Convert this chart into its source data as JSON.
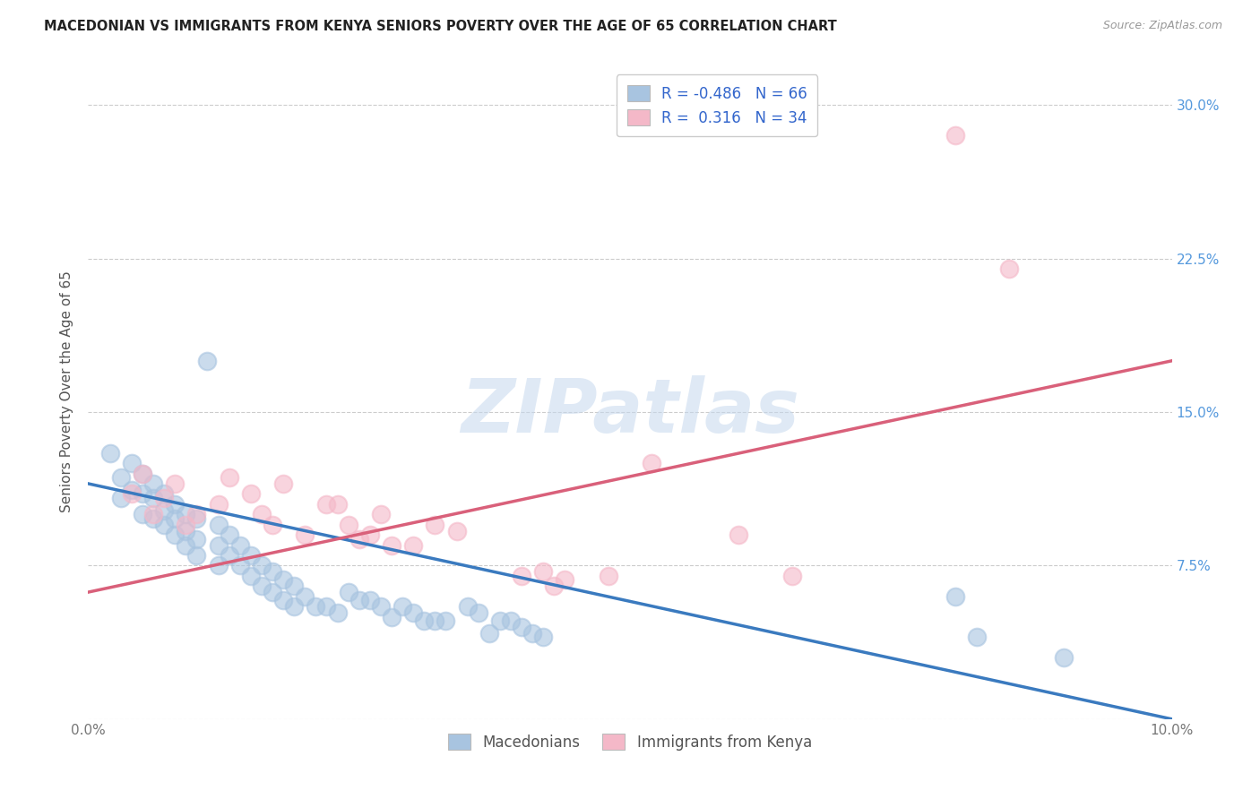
{
  "title": "MACEDONIAN VS IMMIGRANTS FROM KENYA SENIORS POVERTY OVER THE AGE OF 65 CORRELATION CHART",
  "source": "Source: ZipAtlas.com",
  "ylabel": "Seniors Poverty Over the Age of 65",
  "x_min": 0.0,
  "x_max": 0.1,
  "y_min": 0.0,
  "y_max": 0.32,
  "x_ticks": [
    0.0,
    0.02,
    0.04,
    0.06,
    0.08,
    0.1
  ],
  "y_ticks": [
    0.0,
    0.075,
    0.15,
    0.225,
    0.3
  ],
  "macedonian_R": -0.486,
  "macedonian_N": 66,
  "kenya_R": 0.316,
  "kenya_N": 34,
  "macedonian_color": "#a8c4e0",
  "kenya_color": "#f4b8c8",
  "macedonian_line_color": "#3a7abf",
  "kenya_line_color": "#d9607a",
  "watermark": "ZIPatlas",
  "macedonian_points": [
    [
      0.002,
      0.13
    ],
    [
      0.003,
      0.118
    ],
    [
      0.003,
      0.108
    ],
    [
      0.004,
      0.125
    ],
    [
      0.004,
      0.112
    ],
    [
      0.005,
      0.12
    ],
    [
      0.005,
      0.11
    ],
    [
      0.005,
      0.1
    ],
    [
      0.006,
      0.115
    ],
    [
      0.006,
      0.108
    ],
    [
      0.006,
      0.098
    ],
    [
      0.007,
      0.11
    ],
    [
      0.007,
      0.102
    ],
    [
      0.007,
      0.095
    ],
    [
      0.008,
      0.105
    ],
    [
      0.008,
      0.098
    ],
    [
      0.008,
      0.09
    ],
    [
      0.009,
      0.1
    ],
    [
      0.009,
      0.092
    ],
    [
      0.009,
      0.085
    ],
    [
      0.01,
      0.098
    ],
    [
      0.01,
      0.088
    ],
    [
      0.01,
      0.08
    ],
    [
      0.011,
      0.175
    ],
    [
      0.012,
      0.095
    ],
    [
      0.012,
      0.085
    ],
    [
      0.012,
      0.075
    ],
    [
      0.013,
      0.09
    ],
    [
      0.013,
      0.08
    ],
    [
      0.014,
      0.085
    ],
    [
      0.014,
      0.075
    ],
    [
      0.015,
      0.08
    ],
    [
      0.015,
      0.07
    ],
    [
      0.016,
      0.075
    ],
    [
      0.016,
      0.065
    ],
    [
      0.017,
      0.072
    ],
    [
      0.017,
      0.062
    ],
    [
      0.018,
      0.068
    ],
    [
      0.018,
      0.058
    ],
    [
      0.019,
      0.065
    ],
    [
      0.019,
      0.055
    ],
    [
      0.02,
      0.06
    ],
    [
      0.021,
      0.055
    ],
    [
      0.022,
      0.055
    ],
    [
      0.023,
      0.052
    ],
    [
      0.024,
      0.062
    ],
    [
      0.025,
      0.058
    ],
    [
      0.026,
      0.058
    ],
    [
      0.027,
      0.055
    ],
    [
      0.028,
      0.05
    ],
    [
      0.029,
      0.055
    ],
    [
      0.03,
      0.052
    ],
    [
      0.031,
      0.048
    ],
    [
      0.032,
      0.048
    ],
    [
      0.033,
      0.048
    ],
    [
      0.035,
      0.055
    ],
    [
      0.036,
      0.052
    ],
    [
      0.037,
      0.042
    ],
    [
      0.038,
      0.048
    ],
    [
      0.039,
      0.048
    ],
    [
      0.04,
      0.045
    ],
    [
      0.041,
      0.042
    ],
    [
      0.042,
      0.04
    ],
    [
      0.08,
      0.06
    ],
    [
      0.082,
      0.04
    ],
    [
      0.09,
      0.03
    ]
  ],
  "kenya_points": [
    [
      0.004,
      0.11
    ],
    [
      0.005,
      0.12
    ],
    [
      0.006,
      0.1
    ],
    [
      0.007,
      0.108
    ],
    [
      0.008,
      0.115
    ],
    [
      0.009,
      0.095
    ],
    [
      0.01,
      0.1
    ],
    [
      0.012,
      0.105
    ],
    [
      0.013,
      0.118
    ],
    [
      0.015,
      0.11
    ],
    [
      0.016,
      0.1
    ],
    [
      0.017,
      0.095
    ],
    [
      0.018,
      0.115
    ],
    [
      0.02,
      0.09
    ],
    [
      0.022,
      0.105
    ],
    [
      0.023,
      0.105
    ],
    [
      0.024,
      0.095
    ],
    [
      0.025,
      0.088
    ],
    [
      0.026,
      0.09
    ],
    [
      0.027,
      0.1
    ],
    [
      0.028,
      0.085
    ],
    [
      0.03,
      0.085
    ],
    [
      0.032,
      0.095
    ],
    [
      0.034,
      0.092
    ],
    [
      0.04,
      0.07
    ],
    [
      0.042,
      0.072
    ],
    [
      0.043,
      0.065
    ],
    [
      0.044,
      0.068
    ],
    [
      0.048,
      0.07
    ],
    [
      0.052,
      0.125
    ],
    [
      0.06,
      0.09
    ],
    [
      0.065,
      0.07
    ],
    [
      0.08,
      0.285
    ],
    [
      0.085,
      0.22
    ]
  ],
  "mac_line_x": [
    0.0,
    0.1
  ],
  "mac_line_y": [
    0.115,
    0.0
  ],
  "ken_line_x": [
    0.0,
    0.1
  ],
  "ken_line_y": [
    0.062,
    0.175
  ]
}
